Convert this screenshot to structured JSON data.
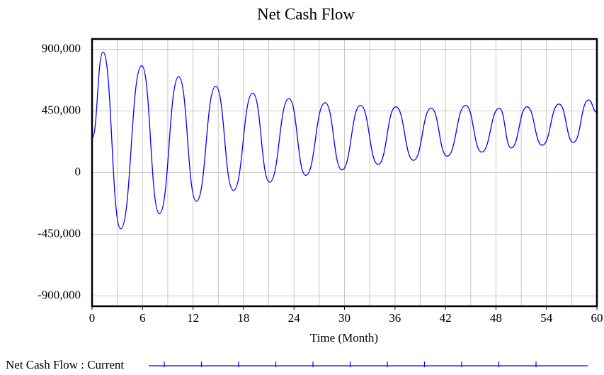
{
  "chart_data": {
    "type": "line",
    "title": "Net Cash Flow",
    "x_label": "Time (Month)",
    "x": [
      0,
      1.3,
      3.4,
      5.9,
      8,
      10.3,
      12.4,
      14.7,
      16.8,
      19.1,
      21.1,
      23.4,
      25.4,
      27.7,
      29.7,
      31.9,
      34,
      36.1,
      38.2,
      40.3,
      42.2,
      44.4,
      46.3,
      48.4,
      49.8,
      51.7,
      53.5,
      55.5,
      57.2,
      59,
      60
    ],
    "series": [
      {
        "name": "Net Cash Flow : Current",
        "color": "#0000ff",
        "values": [
          250000,
          880000,
          -410000,
          780000,
          -300000,
          700000,
          -210000,
          630000,
          -130000,
          580000,
          -70000,
          540000,
          -20000,
          510000,
          20000,
          490000,
          60000,
          480000,
          90000,
          470000,
          120000,
          490000,
          150000,
          470000,
          180000,
          480000,
          200000,
          500000,
          220000,
          530000,
          440000
        ]
      }
    ],
    "xlim": [
      0,
      60
    ],
    "xticks": [
      0,
      6,
      12,
      18,
      24,
      30,
      36,
      42,
      48,
      54,
      60
    ],
    "xgrid": [
      3,
      6,
      9,
      12,
      15,
      18,
      21,
      24,
      27,
      30,
      33,
      36,
      39,
      42,
      45,
      48,
      51,
      54,
      57
    ],
    "ylim": [
      -975000,
      975000
    ],
    "yticks": [
      {
        "value": 900000,
        "label": "900,000"
      },
      {
        "value": 450000,
        "label": "450,000"
      },
      0,
      {
        "value": -450000,
        "label": "-450,000"
      },
      {
        "value": -900000,
        "label": "-900,000"
      }
    ],
    "grid": true
  }
}
